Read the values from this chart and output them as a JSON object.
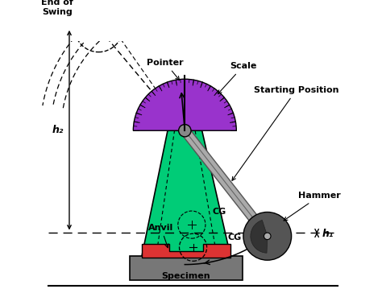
{
  "bg_color": "#ffffff",
  "frame_color": "#00cc77",
  "scale_color": "#9933cc",
  "hammer_color": "#555555",
  "specimen_color": "#dd3333",
  "base_color": "#777777",
  "labels": {
    "pointer": "Pointer",
    "scale": "Scale",
    "starting_position": "Starting Position",
    "hammer": "Hammer",
    "cg_hammer": "CG",
    "cg_frame": "CG",
    "end_of_swing": "End of\nSwing",
    "anvil": "Anvil",
    "specimen": "Specimen",
    "h1": "h₁",
    "h2": "h₂"
  }
}
